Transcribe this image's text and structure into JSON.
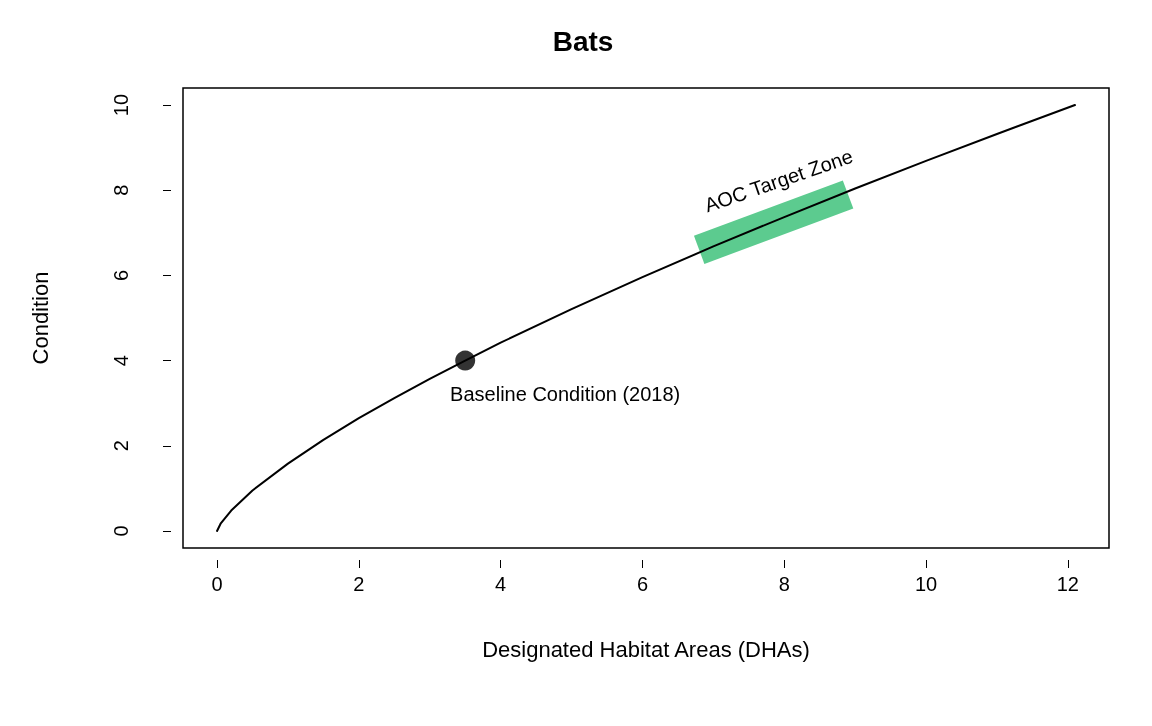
{
  "chart_data": {
    "type": "line",
    "title": "Bats",
    "xlabel": "Designated Habitat Areas (DHAs)",
    "ylabel": "Condition",
    "xlim": [
      -0.48,
      12.58
    ],
    "ylim": [
      -0.4,
      10.4
    ],
    "xticks": [
      0,
      2,
      4,
      6,
      8,
      10,
      12
    ],
    "yticks": [
      0,
      2,
      4,
      6,
      8,
      10
    ],
    "grid": false,
    "legend": false,
    "series": [
      {
        "color": "#000000",
        "marker": "none",
        "x": [
          0,
          0.05,
          0.2,
          0.5,
          1,
          1.5,
          2,
          2.5,
          3,
          3.5,
          4,
          5,
          6,
          7,
          8,
          9,
          10,
          11,
          12.1
        ],
        "values": [
          0,
          0.17,
          0.48,
          0.95,
          1.58,
          2.14,
          2.65,
          3.12,
          3.57,
          4,
          4.42,
          5.21,
          5.96,
          6.68,
          7.37,
          8.04,
          8.69,
          9.32,
          10
        ]
      },
      {
        "type": "line",
        "name": "AOC Target Zone",
        "color": "#5ccb8f",
        "marker": "none",
        "x": [
          6.8,
          8.9
        ],
        "values": [
          6.6,
          7.9
        ]
      },
      {
        "type": "scatter",
        "color": "#000000",
        "marker": "circle",
        "x": [
          3.5
        ],
        "values": [
          4
        ]
      }
    ],
    "annotations": [
      {
        "text": "Baseline Condition (2018)",
        "x": 3.5,
        "y": 4
      }
    ]
  }
}
